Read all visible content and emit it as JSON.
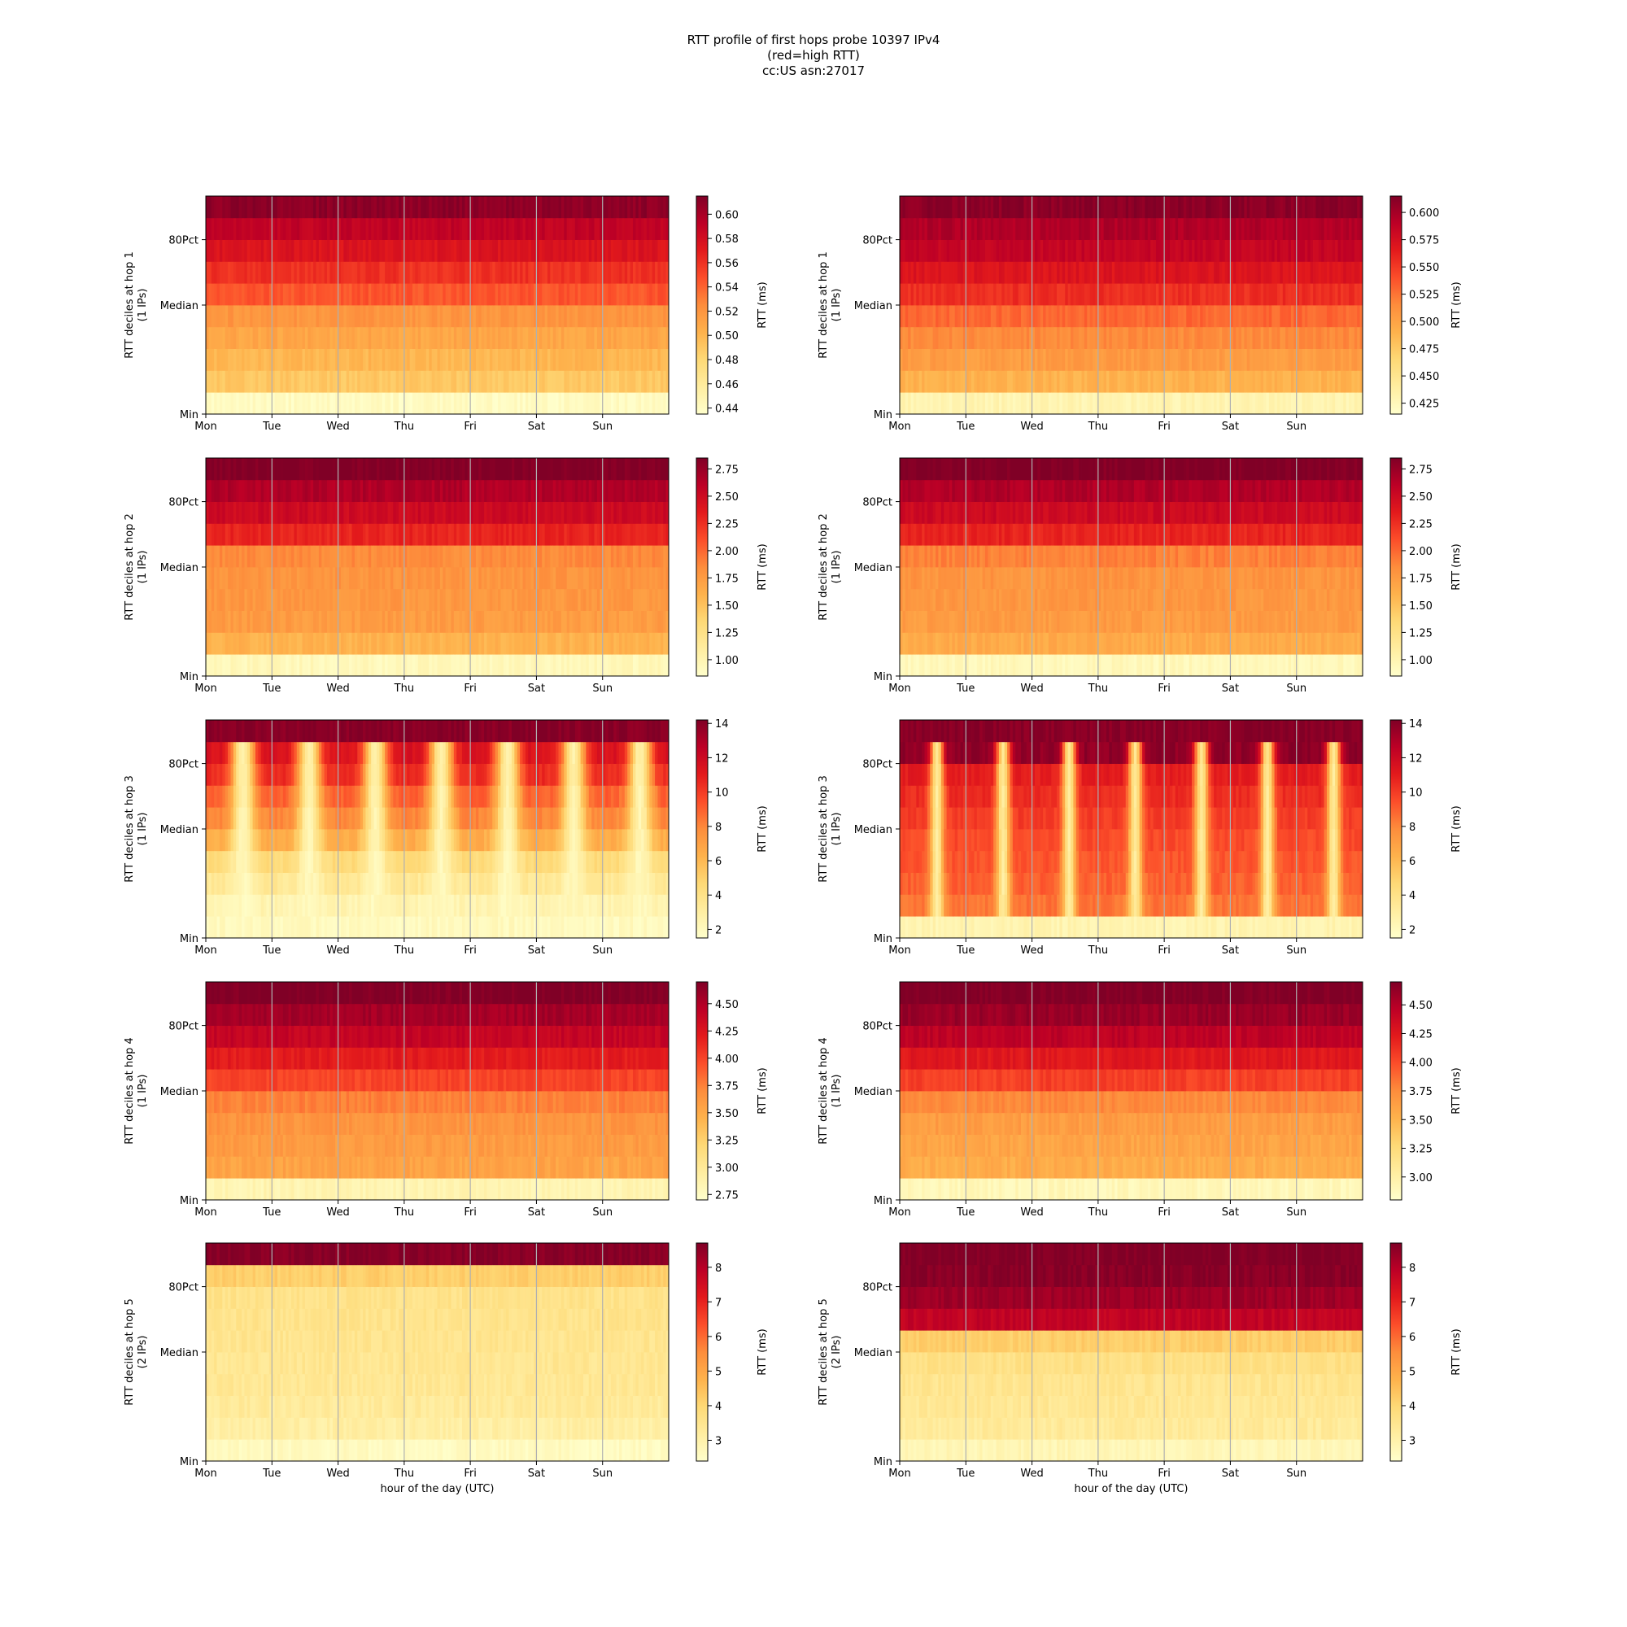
{
  "title_lines": [
    "RTT profile of first hops probe 10397 IPv4",
    "(red=high RTT)",
    "cc:US asn:27017"
  ],
  "xlabel": "hour of the day (UTC)",
  "cbar_label": "RTT (ms)",
  "colormap": "YlOrRd",
  "colors": [
    "#ffffcc",
    "#ffeda0",
    "#fed976",
    "#feb24c",
    "#fd8d3c",
    "#fc4e2a",
    "#e31a1c",
    "#bd0026",
    "#800026"
  ],
  "chart_data": [
    {
      "type": "heatmap",
      "col": 0,
      "hop": 1,
      "ylabel": "RTT deciles at hop 1",
      "ylabel2": "(1 IPs)",
      "x_ticks": [
        "Mon",
        "Tue",
        "Wed",
        "Thu",
        "Fri",
        "Sat",
        "Sun"
      ],
      "y_ticks": [
        "Min",
        "Median",
        "80Pct"
      ],
      "cbar_ticks": [
        "0.44",
        "0.46",
        "0.48",
        "0.50",
        "0.52",
        "0.54",
        "0.56",
        "0.58",
        "0.60"
      ],
      "cbar_range": [
        0.435,
        0.615
      ],
      "cbar_tick_values": [
        0.44,
        0.46,
        0.48,
        0.5,
        0.52,
        0.54,
        0.56,
        0.58,
        0.6
      ],
      "decile_rtt": [
        0.44,
        0.49,
        0.5,
        0.51,
        0.52,
        0.545,
        0.56,
        0.575,
        0.59,
        0.61
      ],
      "pattern": "steady"
    },
    {
      "type": "heatmap",
      "col": 1,
      "hop": 1,
      "ylabel": "RTT deciles at hop 1",
      "ylabel2": "(1 IPs)",
      "x_ticks": [
        "Mon",
        "Tue",
        "Wed",
        "Thu",
        "Fri",
        "Sat",
        "Sun"
      ],
      "y_ticks": [
        "Min",
        "Median",
        "80Pct"
      ],
      "cbar_ticks": [
        "0.425",
        "0.450",
        "0.475",
        "0.500",
        "0.525",
        "0.550",
        "0.575",
        "0.600"
      ],
      "cbar_range": [
        0.415,
        0.615
      ],
      "cbar_tick_values": [
        0.425,
        0.45,
        0.475,
        0.5,
        0.525,
        0.55,
        0.575,
        0.6
      ],
      "decile_rtt": [
        0.43,
        0.49,
        0.505,
        0.515,
        0.53,
        0.555,
        0.57,
        0.585,
        0.595,
        0.61
      ],
      "pattern": "steady"
    },
    {
      "type": "heatmap",
      "col": 0,
      "hop": 2,
      "ylabel": "RTT deciles at hop 2",
      "ylabel2": "(1 IPs)",
      "x_ticks": [
        "Mon",
        "Tue",
        "Wed",
        "Thu",
        "Fri",
        "Sat",
        "Sun"
      ],
      "y_ticks": [
        "Min",
        "Median",
        "80Pct"
      ],
      "cbar_ticks": [
        "1.00",
        "1.25",
        "1.50",
        "1.75",
        "2.00",
        "2.25",
        "2.50",
        "2.75"
      ],
      "cbar_range": [
        0.85,
        2.85
      ],
      "cbar_tick_values": [
        1.0,
        1.25,
        1.5,
        1.75,
        2.0,
        2.25,
        2.5,
        2.75
      ],
      "decile_rtt": [
        0.95,
        1.6,
        1.75,
        1.78,
        1.8,
        1.85,
        2.3,
        2.5,
        2.65,
        2.85
      ],
      "pattern": "steady"
    },
    {
      "type": "heatmap",
      "col": 1,
      "hop": 2,
      "ylabel": "RTT deciles at hop 2",
      "ylabel2": "(1 IPs)",
      "x_ticks": [
        "Mon",
        "Tue",
        "Wed",
        "Thu",
        "Fri",
        "Sat",
        "Sun"
      ],
      "y_ticks": [
        "Min",
        "Median",
        "80Pct"
      ],
      "cbar_ticks": [
        "1.00",
        "1.25",
        "1.50",
        "1.75",
        "2.00",
        "2.25",
        "2.50",
        "2.75"
      ],
      "cbar_range": [
        0.85,
        2.85
      ],
      "cbar_tick_values": [
        1.0,
        1.25,
        1.5,
        1.75,
        2.0,
        2.25,
        2.5,
        2.75
      ],
      "decile_rtt": [
        0.95,
        1.65,
        1.75,
        1.78,
        1.8,
        1.9,
        2.3,
        2.5,
        2.65,
        2.85
      ],
      "pattern": "steady"
    },
    {
      "type": "heatmap",
      "col": 0,
      "hop": 3,
      "ylabel": "RTT deciles at hop 3",
      "ylabel2": "(1 IPs)",
      "x_ticks": [
        "Mon",
        "Tue",
        "Wed",
        "Thu",
        "Fri",
        "Sat",
        "Sun"
      ],
      "y_ticks": [
        "Min",
        "Median",
        "80Pct"
      ],
      "cbar_ticks": [
        "2",
        "4",
        "6",
        "8",
        "10",
        "12",
        "14"
      ],
      "cbar_range": [
        1.5,
        14.2
      ],
      "cbar_tick_values": [
        2,
        4,
        6,
        8,
        10,
        12,
        14
      ],
      "decile_rtt": [
        2.0,
        2.5,
        3.5,
        4.5,
        6.5,
        8.0,
        9.0,
        10.5,
        11.5,
        14.0
      ],
      "pattern": "daily"
    },
    {
      "type": "heatmap",
      "col": 1,
      "hop": 3,
      "ylabel": "RTT deciles at hop 3",
      "ylabel2": "(1 IPs)",
      "x_ticks": [
        "Mon",
        "Tue",
        "Wed",
        "Thu",
        "Fri",
        "Sat",
        "Sun"
      ],
      "y_ticks": [
        "Min",
        "Median",
        "80Pct"
      ],
      "cbar_ticks": [
        "2",
        "4",
        "6",
        "8",
        "10",
        "12",
        "14"
      ],
      "cbar_range": [
        1.5,
        14.2
      ],
      "cbar_tick_values": [
        2,
        4,
        6,
        8,
        10,
        12,
        14
      ],
      "decile_rtt": [
        2.5,
        8.5,
        9.0,
        9.3,
        9.6,
        10.0,
        10.5,
        11.0,
        13.8,
        14.0
      ],
      "pattern": "daily-narrow"
    },
    {
      "type": "heatmap",
      "col": 0,
      "hop": 4,
      "ylabel": "RTT deciles at hop 4",
      "ylabel2": "(1 IPs)",
      "x_ticks": [
        "Mon",
        "Tue",
        "Wed",
        "Thu",
        "Fri",
        "Sat",
        "Sun"
      ],
      "y_ticks": [
        "Min",
        "Median",
        "80Pct"
      ],
      "cbar_ticks": [
        "2.75",
        "3.00",
        "3.25",
        "3.50",
        "3.75",
        "4.00",
        "4.25",
        "4.50"
      ],
      "cbar_range": [
        2.7,
        4.7
      ],
      "cbar_tick_values": [
        2.75,
        3.0,
        3.25,
        3.5,
        3.75,
        4.0,
        4.25,
        4.5
      ],
      "decile_rtt": [
        2.85,
        3.55,
        3.6,
        3.65,
        3.75,
        4.0,
        4.2,
        4.4,
        4.55,
        4.7
      ],
      "pattern": "steady"
    },
    {
      "type": "heatmap",
      "col": 1,
      "hop": 4,
      "ylabel": "RTT deciles at hop 4",
      "ylabel2": "(1 IPs)",
      "x_ticks": [
        "Mon",
        "Tue",
        "Wed",
        "Thu",
        "Fri",
        "Sat",
        "Sun"
      ],
      "y_ticks": [
        "Min",
        "Median",
        "80Pct"
      ],
      "cbar_ticks": [
        "3.00",
        "3.25",
        "3.50",
        "3.75",
        "4.00",
        "4.25",
        "4.50"
      ],
      "cbar_range": [
        2.8,
        4.7
      ],
      "cbar_tick_values": [
        3.0,
        3.25,
        3.5,
        3.75,
        4.0,
        4.25,
        4.5
      ],
      "decile_rtt": [
        2.9,
        3.55,
        3.6,
        3.65,
        3.75,
        4.05,
        4.25,
        4.45,
        4.6,
        4.7
      ],
      "pattern": "steady"
    },
    {
      "type": "heatmap",
      "col": 0,
      "hop": 5,
      "ylabel": "RTT deciles at hop 5",
      "ylabel2": "(2 IPs)",
      "x_ticks": [
        "Mon",
        "Tue",
        "Wed",
        "Thu",
        "Fri",
        "Sat",
        "Sun"
      ],
      "y_ticks": [
        "Min",
        "Median",
        "80Pct"
      ],
      "cbar_ticks": [
        "3",
        "4",
        "5",
        "6",
        "7",
        "8"
      ],
      "cbar_range": [
        2.4,
        8.7
      ],
      "cbar_tick_values": [
        3,
        4,
        5,
        6,
        7,
        8
      ],
      "decile_rtt": [
        2.6,
        3.1,
        3.3,
        3.4,
        3.45,
        3.5,
        3.55,
        3.6,
        4.2,
        8.6
      ],
      "pattern": "steady"
    },
    {
      "type": "heatmap",
      "col": 1,
      "hop": 5,
      "ylabel": "RTT deciles at hop 5",
      "ylabel2": "(2 IPs)",
      "x_ticks": [
        "Mon",
        "Tue",
        "Wed",
        "Thu",
        "Fri",
        "Sat",
        "Sun"
      ],
      "y_ticks": [
        "Min",
        "Median",
        "80Pct"
      ],
      "cbar_ticks": [
        "3",
        "4",
        "5",
        "6",
        "7",
        "8"
      ],
      "cbar_range": [
        2.4,
        8.7
      ],
      "cbar_tick_values": [
        3,
        4,
        5,
        6,
        7,
        8
      ],
      "decile_rtt": [
        2.8,
        3.3,
        3.4,
        3.5,
        3.7,
        4.2,
        7.8,
        8.3,
        8.6,
        8.7
      ],
      "pattern": "steady"
    }
  ]
}
